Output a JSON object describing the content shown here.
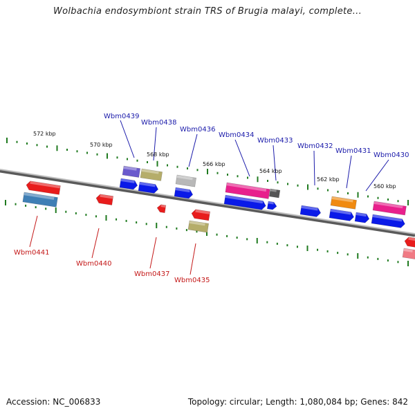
{
  "title": "Wolbachia endosymbiont strain TRS of Brugia malayi, complete...",
  "footer": {
    "accession": "Accession: NC_006833",
    "topology": "Topology: circular; Length: 1,080,084 bp; Genes: 842"
  },
  "colors": {
    "backbone": "#8a8a8a",
    "tick": "#1f7a1f",
    "label_top": "#1a1aaa",
    "label_bottom": "#c41818"
  },
  "scale_labels": [
    {
      "text": "572 kbp"
    },
    {
      "text": "570 kbp"
    },
    {
      "text": "568 kbp"
    },
    {
      "text": "566 kbp"
    },
    {
      "text": "564 kbp"
    },
    {
      "text": "562 kbp"
    },
    {
      "text": "560 kbp"
    }
  ],
  "gene_labels_top": [
    {
      "name": "Wbm0439"
    },
    {
      "name": "Wbm0438"
    },
    {
      "name": "Wbm0436"
    },
    {
      "name": "Wbm0434"
    },
    {
      "name": "Wbm0433"
    },
    {
      "name": "Wbm0432"
    },
    {
      "name": "Wbm0431"
    },
    {
      "name": "Wbm0430"
    }
  ],
  "gene_labels_bottom": [
    {
      "name": "Wbm0441"
    },
    {
      "name": "Wbm0440"
    },
    {
      "name": "Wbm0437"
    },
    {
      "name": "Wbm0435"
    }
  ]
}
